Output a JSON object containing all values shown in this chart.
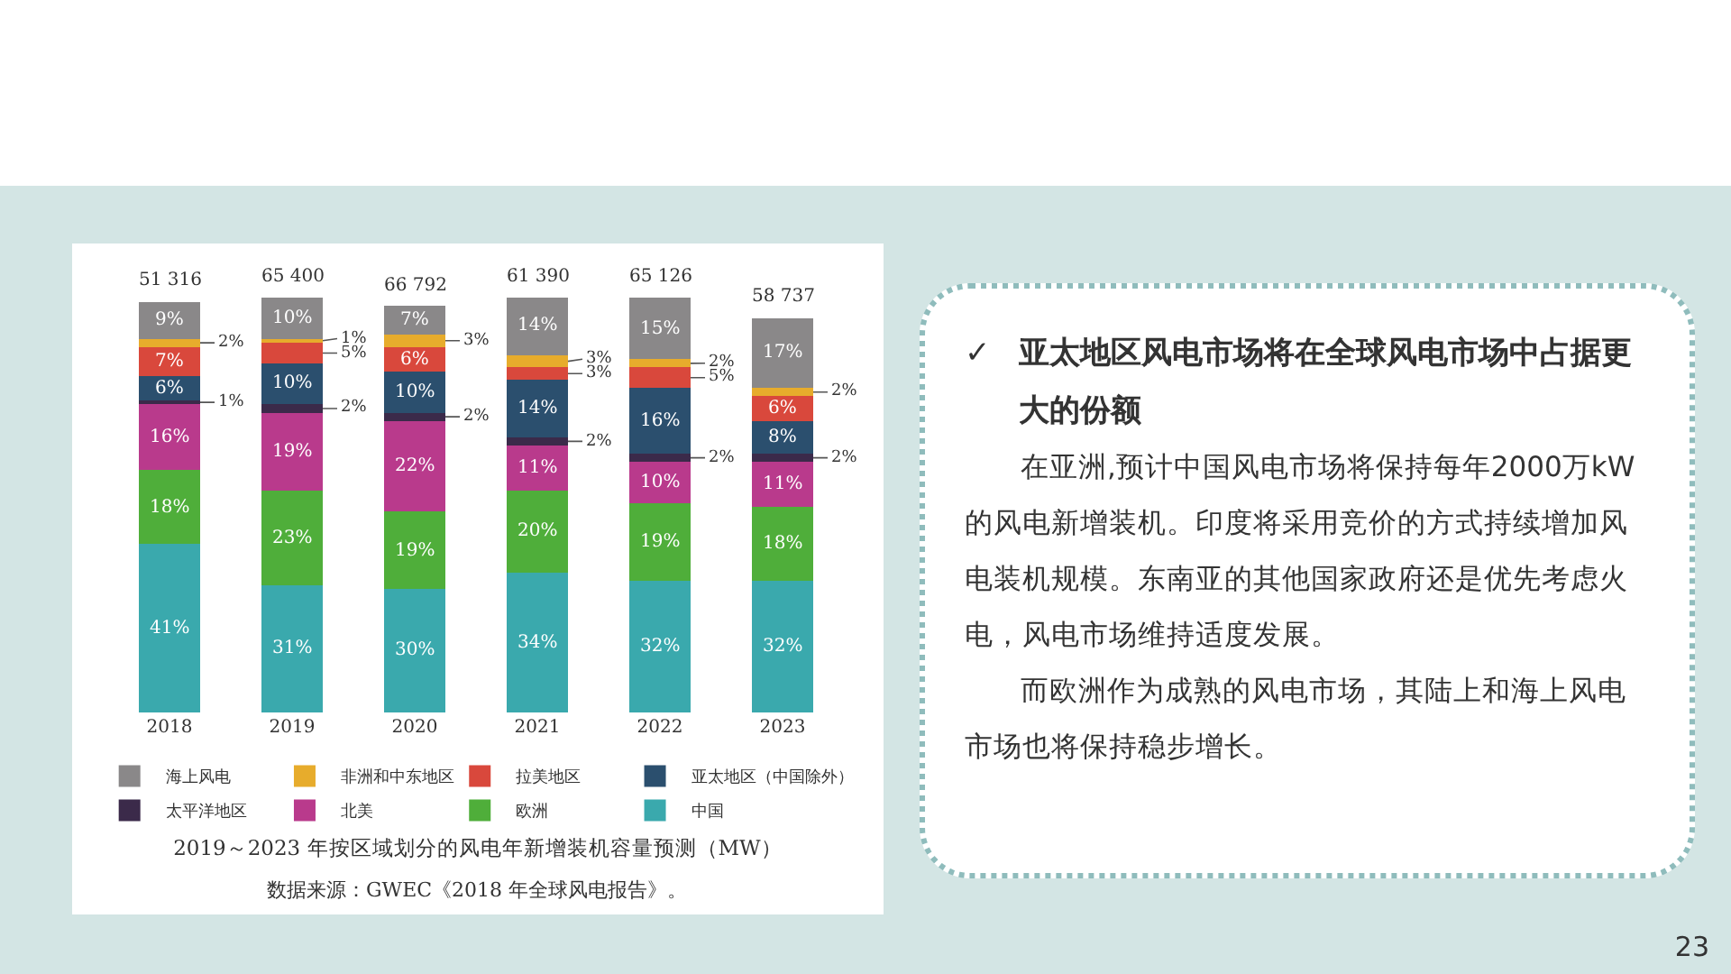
{
  "chart_data": {
    "type": "bar",
    "stacked": true,
    "title": "2019～2023 年按区域划分的风电年新增装机容量预测（MW）",
    "categories": [
      "2018",
      "2019",
      "2020",
      "2021",
      "2022",
      "2023"
    ],
    "series": [
      {
        "name": "中国",
        "color": "#3aa9ad",
        "values": [
          41,
          31,
          30,
          34,
          32,
          32
        ],
        "value_labels": [
          "41%",
          "31%",
          "30%",
          "34%",
          "32%",
          "32%"
        ]
      },
      {
        "name": "欧洲",
        "color": "#4fae3a",
        "values": [
          18,
          23,
          19,
          20,
          19,
          18
        ],
        "value_labels": [
          "18%",
          "23%",
          "19%",
          "20%",
          "19%",
          "18%"
        ]
      },
      {
        "name": "北美",
        "color": "#b93a8c",
        "values": [
          16,
          19,
          22,
          11,
          10,
          11
        ],
        "value_labels": [
          "16%",
          "19%",
          "22%",
          "11%",
          "10%",
          "11%"
        ]
      },
      {
        "name": "太平洋地区",
        "color": "#3b2a4a",
        "values": [
          1,
          2,
          2,
          2,
          2,
          2
        ],
        "value_labels": [
          "1%",
          "2%",
          "2%",
          "2%",
          "2%",
          "2%"
        ]
      },
      {
        "name": "亚太地区（中国除外）",
        "color": "#2b4f6e",
        "values": [
          6,
          10,
          10,
          14,
          16,
          8
        ],
        "value_labels": [
          "6%",
          "10%",
          "10%",
          "14%",
          "16%",
          "8%"
        ]
      },
      {
        "name": "拉美地区",
        "color": "#d9483c",
        "values": [
          7,
          5,
          6,
          3,
          5,
          6
        ],
        "value_labels": [
          "7%",
          "5%",
          "6%",
          "3%",
          "5%",
          "6%"
        ]
      },
      {
        "name": "非洲和中东地区",
        "color": "#e7ac2c",
        "values": [
          2,
          1,
          3,
          3,
          2,
          2
        ],
        "value_labels": [
          "2%",
          "1%",
          "3%",
          "3%",
          "2%",
          "2%"
        ]
      },
      {
        "name": "海上风电",
        "color": "#8a8889",
        "values": [
          9,
          10,
          7,
          14,
          15,
          17
        ],
        "value_labels": [
          "9%",
          "10%",
          "7%",
          "14%",
          "15%",
          "17%"
        ]
      }
    ],
    "legend": "bottom",
    "grid": false,
    "annotations": [
      "数据来源：GWEC《2018 年全球风电报告》。",
      {
        "text": "51 316",
        "x": "2018",
        "y": 100
      },
      {
        "text": "65 400",
        "x": "2019",
        "y": 101
      },
      {
        "text": "66 792",
        "x": "2020",
        "y": 99
      },
      {
        "text": "61 390",
        "x": "2021",
        "y": 101
      },
      {
        "text": "65 126",
        "x": "2022",
        "y": 101
      },
      {
        "text": "58 737",
        "x": "2023",
        "y": 96
      },
      "✓",
      "亚太地区风电市场将在全球风电市场中占据更大的份额",
      "在亚洲,预计中国风电市场将保持每年2000万kW的风电新增装机。印度将采用竞价的方式持续增加风电装机规模。东南亚的其他国家政府还是优先考虑火电，风电市场维持适度发展。",
      "而欧洲作为成熟的风电市场，其陆上和海上风电市场也将保持稳步增长。",
      "23"
    ]
  }
}
